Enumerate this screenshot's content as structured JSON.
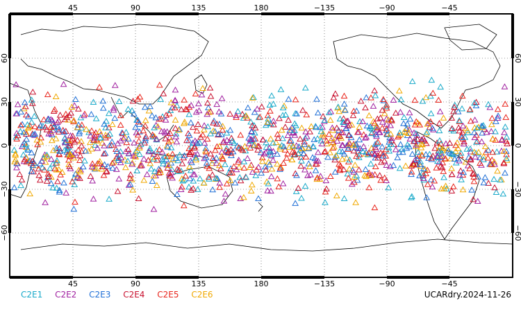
{
  "map": {
    "projection": "cylindrical equidistant, centered on 180",
    "grid": "dotted",
    "lon_ticks_top": [
      "45",
      "90",
      "135",
      "180",
      "−135",
      "−90",
      "−45"
    ],
    "lon_ticks_bottom": [
      "45",
      "90",
      "135",
      "180",
      "−135",
      "−90",
      "−45"
    ],
    "lat_ticks_left": [
      "60",
      "30",
      "0",
      "−30",
      "−60"
    ],
    "lat_ticks_right": [
      "60",
      "30",
      "0",
      "−30",
      "−60"
    ]
  },
  "legend": [
    {
      "label": "C2E1",
      "color": "#17a9c9"
    },
    {
      "label": "C2E2",
      "color": "#a020a0"
    },
    {
      "label": "C2E3",
      "color": "#1f6fd6"
    },
    {
      "label": "C2E4",
      "color": "#c8102e"
    },
    {
      "label": "C2E5",
      "color": "#e8231a"
    },
    {
      "label": "C2E6",
      "color": "#f0a800"
    }
  ],
  "stamp": "UCARdry.2024-11-26",
  "chart_data": {
    "type": "scatter",
    "marker": "open triangle",
    "lat_range": [
      -90,
      90
    ],
    "lon_range": [
      0,
      360
    ],
    "distribution": "occultation points spread over latitudes ~−45 to 45, densest near the equator",
    "series": [
      {
        "name": "C2E1"
      },
      {
        "name": "C2E2"
      },
      {
        "name": "C2E3"
      },
      {
        "name": "C2E4"
      },
      {
        "name": "C2E5"
      },
      {
        "name": "C2E6"
      }
    ]
  }
}
